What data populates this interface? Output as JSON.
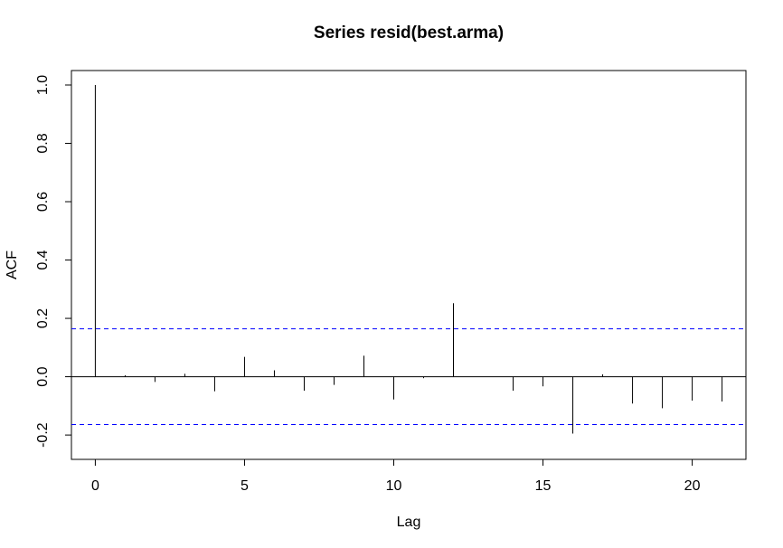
{
  "chart_data": {
    "type": "bar",
    "title": "Series  resid(best.arma)",
    "xlabel": "Lag",
    "ylabel": "ACF",
    "xlim": [
      -0.8,
      21.8
    ],
    "ylim": [
      -0.24,
      1.0
    ],
    "x_ticks": [
      0,
      5,
      10,
      15,
      20
    ],
    "y_ticks": [
      -0.2,
      0.0,
      0.2,
      0.4,
      0.6,
      0.8,
      1.0
    ],
    "x_tick_labels": [
      "0",
      "5",
      "10",
      "15",
      "20"
    ],
    "y_tick_labels": [
      "-0.2",
      "0.0",
      "0.2",
      "0.4",
      "0.6",
      "0.8",
      "1.0"
    ],
    "series": [
      {
        "x": [
          0,
          1,
          2,
          3,
          4,
          5,
          6,
          7,
          8,
          9,
          10,
          11,
          12,
          13,
          14,
          15,
          16,
          17,
          18,
          19,
          20,
          21
        ],
        "values": [
          1.0,
          0.005,
          -0.018,
          0.01,
          -0.05,
          0.068,
          0.022,
          -0.048,
          -0.028,
          0.072,
          -0.078,
          -0.005,
          0.252,
          0.0,
          -0.048,
          -0.033,
          -0.195,
          0.008,
          -0.092,
          -0.108,
          -0.082,
          -0.085
        ]
      }
    ],
    "confidence_bounds": [
      0.164,
      -0.164
    ],
    "confidence_color": "#0000ff",
    "bar_color": "#000000",
    "grid": false
  }
}
